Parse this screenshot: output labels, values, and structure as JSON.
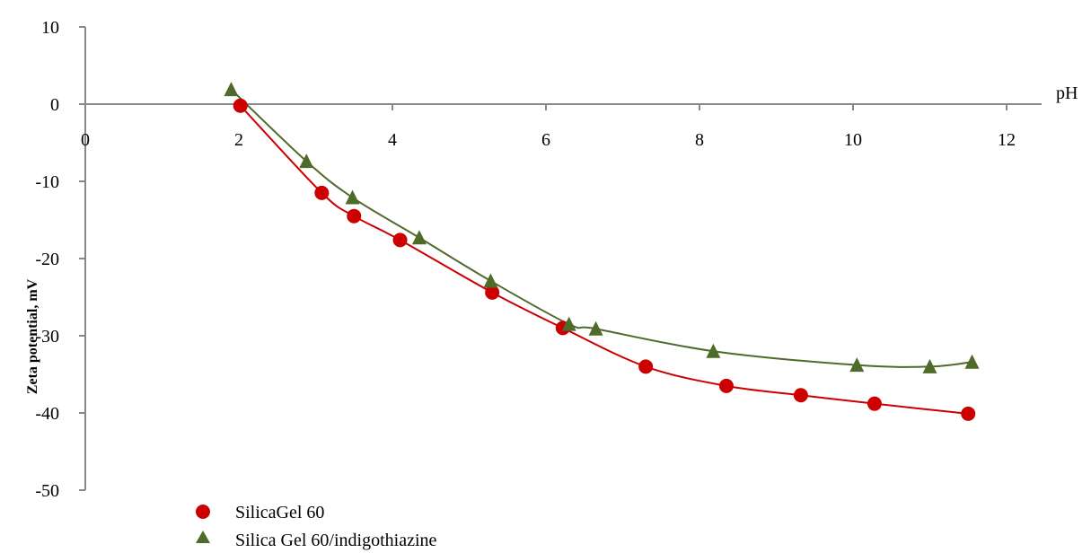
{
  "chart_data": {
    "type": "scatter",
    "title": "",
    "xlabel": "pH",
    "ylabel": "Zeta potential, mV",
    "xlim": [
      0,
      12
    ],
    "ylim": [
      -50,
      10
    ],
    "x_ticks": [
      0,
      2,
      4,
      6,
      8,
      10,
      12
    ],
    "y_ticks": [
      10,
      0,
      -10,
      -20,
      -30,
      -40,
      -50
    ],
    "grid": false,
    "legend_position": "bottom-left",
    "series": [
      {
        "name": "SilicaGel 60",
        "marker": "circle",
        "color": "#cc0000",
        "x": [
          2.02,
          3.08,
          3.5,
          4.1,
          5.3,
          6.22,
          7.3,
          8.35,
          9.32,
          10.28,
          11.5
        ],
        "y": [
          -0.2,
          -11.5,
          -14.5,
          -17.6,
          -24.4,
          -29.0,
          -34.0,
          -36.5,
          -37.7,
          -38.8,
          -40.1
        ]
      },
      {
        "name": "Silica Gel 60/indigothiazine",
        "marker": "triangle",
        "color": "#4f6b2a",
        "x": [
          1.9,
          2.88,
          3.48,
          4.35,
          5.28,
          6.3,
          6.65,
          8.18,
          10.05,
          11.0,
          11.55
        ],
        "y": [
          1.9,
          -7.4,
          -12.1,
          -17.3,
          -22.9,
          -28.5,
          -29.1,
          -32.0,
          -33.8,
          -34.0,
          -33.4
        ]
      }
    ]
  }
}
